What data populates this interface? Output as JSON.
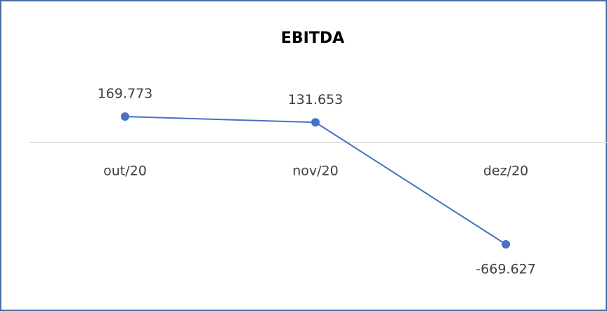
{
  "chart_data": {
    "type": "line",
    "title": "EBITDA",
    "categories": [
      "out/20",
      "nov/20",
      "dez/20"
    ],
    "series": [
      {
        "name": "EBITDA",
        "color": "#4472c4",
        "values": [
          169773,
          131653,
          -669627
        ],
        "value_labels": [
          "169.773",
          "131.653",
          "-669.627"
        ]
      }
    ]
  }
}
